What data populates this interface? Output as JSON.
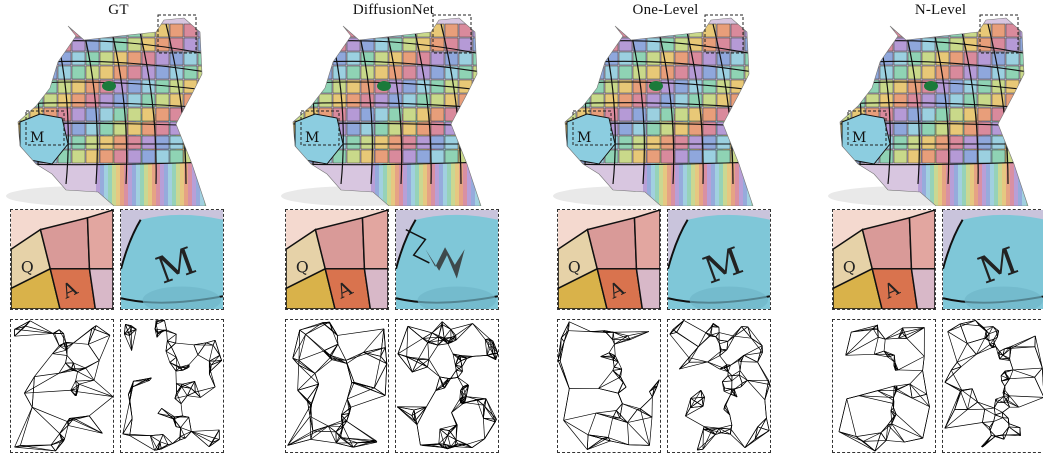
{
  "figure": {
    "columns": [
      {
        "id": "gt",
        "title": "GT",
        "zoom_letters": [
          "Q",
          "A",
          "M"
        ],
        "distortion": 0
      },
      {
        "id": "diffusionnet",
        "title": "DiffusionNet",
        "zoom_letters": [
          "Q",
          "A",
          "M"
        ],
        "distortion": 1
      },
      {
        "id": "one-level",
        "title": "One-Level",
        "zoom_letters": [
          "Q",
          "A",
          "M"
        ],
        "distortion": 0
      },
      {
        "id": "n-level",
        "title": "N-Level",
        "zoom_letters": [
          "Q",
          "A",
          "M"
        ],
        "distortion": 0
      }
    ]
  },
  "colors": {
    "tile_orange": "#d9734e",
    "tile_pink": "#d99a98",
    "tile_blue": "#7fc7d8",
    "tile_yellow": "#d9b24a",
    "tile_purple": "#9b8fc8",
    "mesh_line": "#000000"
  }
}
